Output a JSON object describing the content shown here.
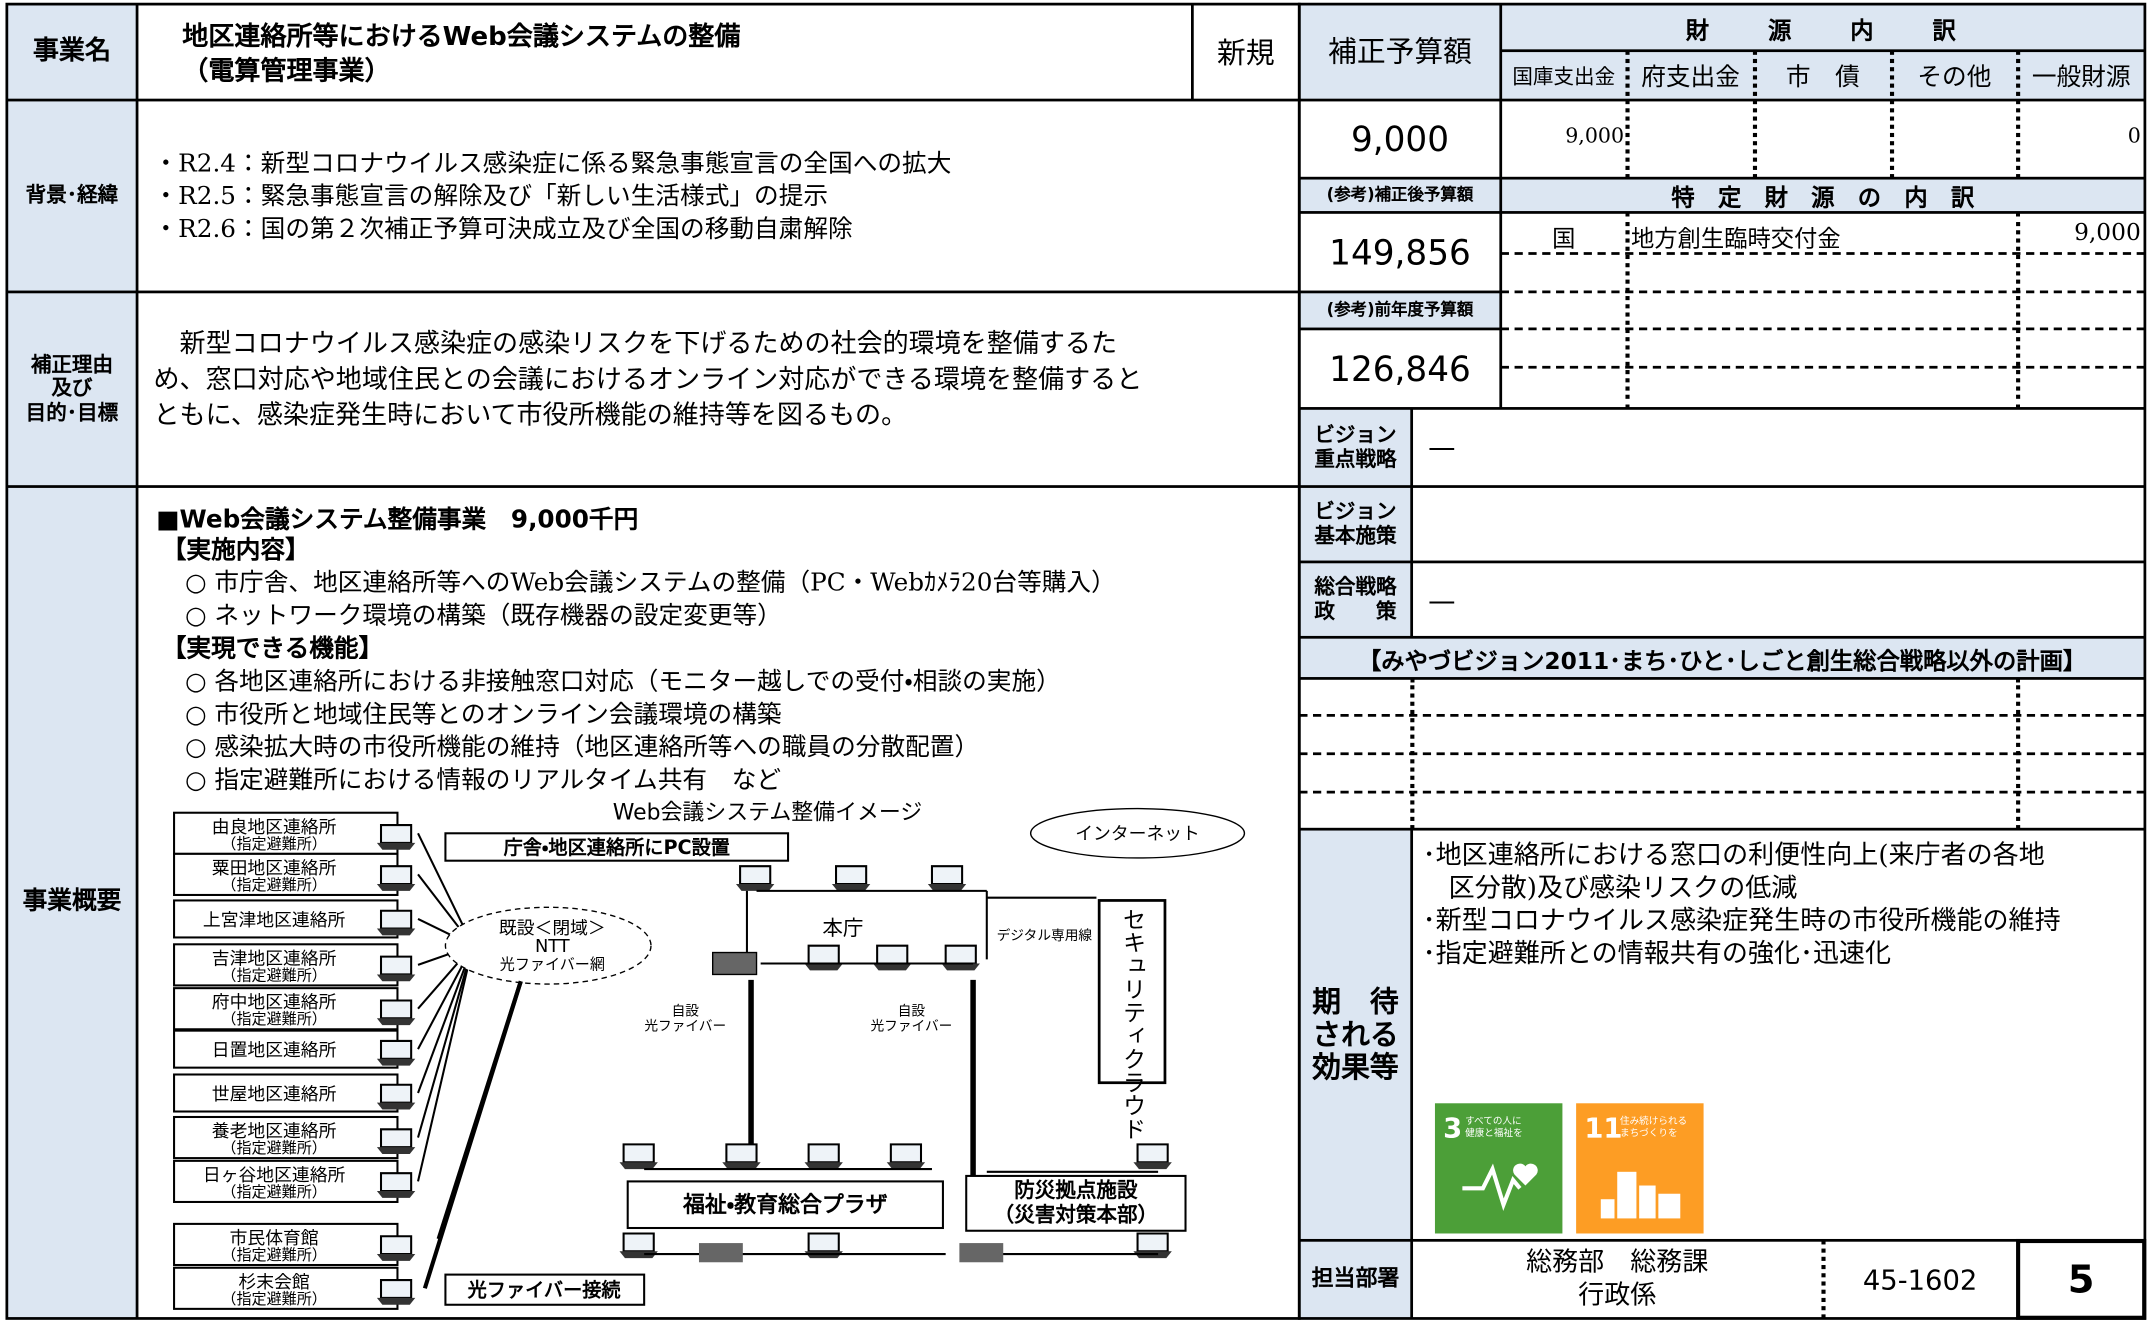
{
  "header": {
    "label": "事業名",
    "title": "地区連絡所等におけるWeb会議システムの整備",
    "subtitle": "（電算管理事業）",
    "status": "新規"
  },
  "background": {
    "label": "背景･経緯",
    "items": [
      "・R2.4：新型コロナウイルス感染症に係る緊急事態宣言の全国への拡大",
      "・R2.5：緊急事態宣言の解除及び「新しい生活様式」の提示",
      "・R2.6：国の第２次補正予算可決成立及び全国の移動自粛解除"
    ]
  },
  "reason": {
    "label": [
      "補正理由",
      "及び",
      "目的･目標"
    ],
    "lines": [
      "　新型コロナウイルス感染症の感染リスクを下げるための社会的環境を整備するた",
      "め、窓口対応や地域住民との会議におけるオンライン対応ができる環境を整備すると",
      "ともに、感染症発生時において市役所機能の維持等を図るもの。"
    ]
  },
  "overview": {
    "label": "事業概要",
    "heading": "■Web会議システム整備事業　9,000千円",
    "section1": "【実施内容】",
    "items1": [
      "○ 市庁舎、地区連絡所等へのWeb会議システムの整備（PC・Webｶﾒﾗ20台等購入）",
      "○ ネットワーク環境の構築（既存機器の設定変更等）"
    ],
    "section2": "【実現できる機能】",
    "items2": [
      "○ 各地区連絡所における非接触窓口対応（モニター越しでの受付・相談の実施）",
      "○ 市役所と地域住民等とのオンライン会議環境の構築",
      "○ 感染拡大時の市役所機能の維持（地区連絡所等への職員の分散配置）",
      "○ 指定避難所における情報のリアルタイム共有　など"
    ]
  },
  "diagram": {
    "title": "Web会議システム整備イメージ",
    "pc_note": "庁舎・地区連絡所にPC設置",
    "internet": "インターネット",
    "network": [
      "既設＜閉域＞",
      "NTT",
      "光ファイバー網"
    ],
    "city_hall": "本庁",
    "digital": "デジタル専用線",
    "cloud": "セキュリティクラウド",
    "fiber_labels": [
      [
        "自設",
        "光ファイバー"
      ],
      [
        "自設",
        "光ファイバー"
      ]
    ],
    "plaza": "福祉・教育総合プラザ",
    "disaster": [
      "防災拠点施設",
      "（災害対策本部）"
    ],
    "connection": "光ファイバー接続",
    "offices": [
      {
        "name": "由良地区連絡所",
        "note": "（指定避難所）"
      },
      {
        "name": "粟田地区連絡所",
        "note": "（指定避難所）"
      },
      {
        "name": "上宮津地区連絡所"
      },
      {
        "name": "吉津地区連絡所",
        "note": "（指定避難所）"
      },
      {
        "name": "府中地区連絡所",
        "note": "（指定避難所）"
      },
      {
        "name": "日置地区連絡所"
      },
      {
        "name": "世屋地区連絡所"
      },
      {
        "name": "養老地区連絡所",
        "note": "（指定避難所）"
      },
      {
        "name": "日ヶ谷地区連絡所",
        "note": "（指定避難所）"
      },
      {
        "name": "市民体育館",
        "note": "（指定避難所）"
      },
      {
        "name": "杉末会館",
        "note": "（指定避難所）"
      }
    ]
  },
  "budget": {
    "label": "補正予算額",
    "amount": "9,000",
    "funding_title": "財　　源　　内　　訳",
    "funding_headers": [
      "国庫支出金",
      "府支出金",
      "市　債",
      "その他",
      "一般財源"
    ],
    "funding_national": "9,000",
    "funding_general": "0",
    "after_label": "(参考)補正後予算額",
    "after_amount": "149,856",
    "specific_title": "特　定　財　源　の　内　訳",
    "specific_rows": [
      [
        "国",
        "地方創生臨時交付金",
        "9,000"
      ]
    ],
    "prev_label": "(参考)前年度予算額",
    "prev_amount": "126,846"
  },
  "vision": {
    "priority_label": [
      "ビジョン",
      "重点戦略"
    ],
    "priority_value": "—",
    "basic_label": [
      "ビジョン",
      "基本施策"
    ],
    "strategy_label": [
      "総合戦略",
      "政　　策"
    ],
    "strategy_value": "—",
    "plan_header": "【みやづビジョン2011･まち･ひと･しごと創生総合戦略以外の計画】"
  },
  "effects": {
    "label": [
      "期　待",
      "される",
      "効果等"
    ],
    "items": [
      "･地区連絡所における窓口の利便性向上(来庁者の各地",
      "　区分散)及び感染リスクの低減",
      "･新型コロナウイルス感染症発生時の市役所機能の維持",
      "･指定避難所との情報共有の強化･迅速化"
    ],
    "sdgs": [
      {
        "number": "3",
        "text": [
          "すべての人に",
          "健康と福祉を"
        ]
      },
      {
        "number": "11",
        "text": [
          "住み続けられる",
          "まちづくりを"
        ]
      }
    ]
  },
  "department": {
    "label": "担当部署",
    "name": [
      "総務部　総務課",
      "行政係"
    ],
    "phone": "45-1602",
    "page": "5"
  }
}
